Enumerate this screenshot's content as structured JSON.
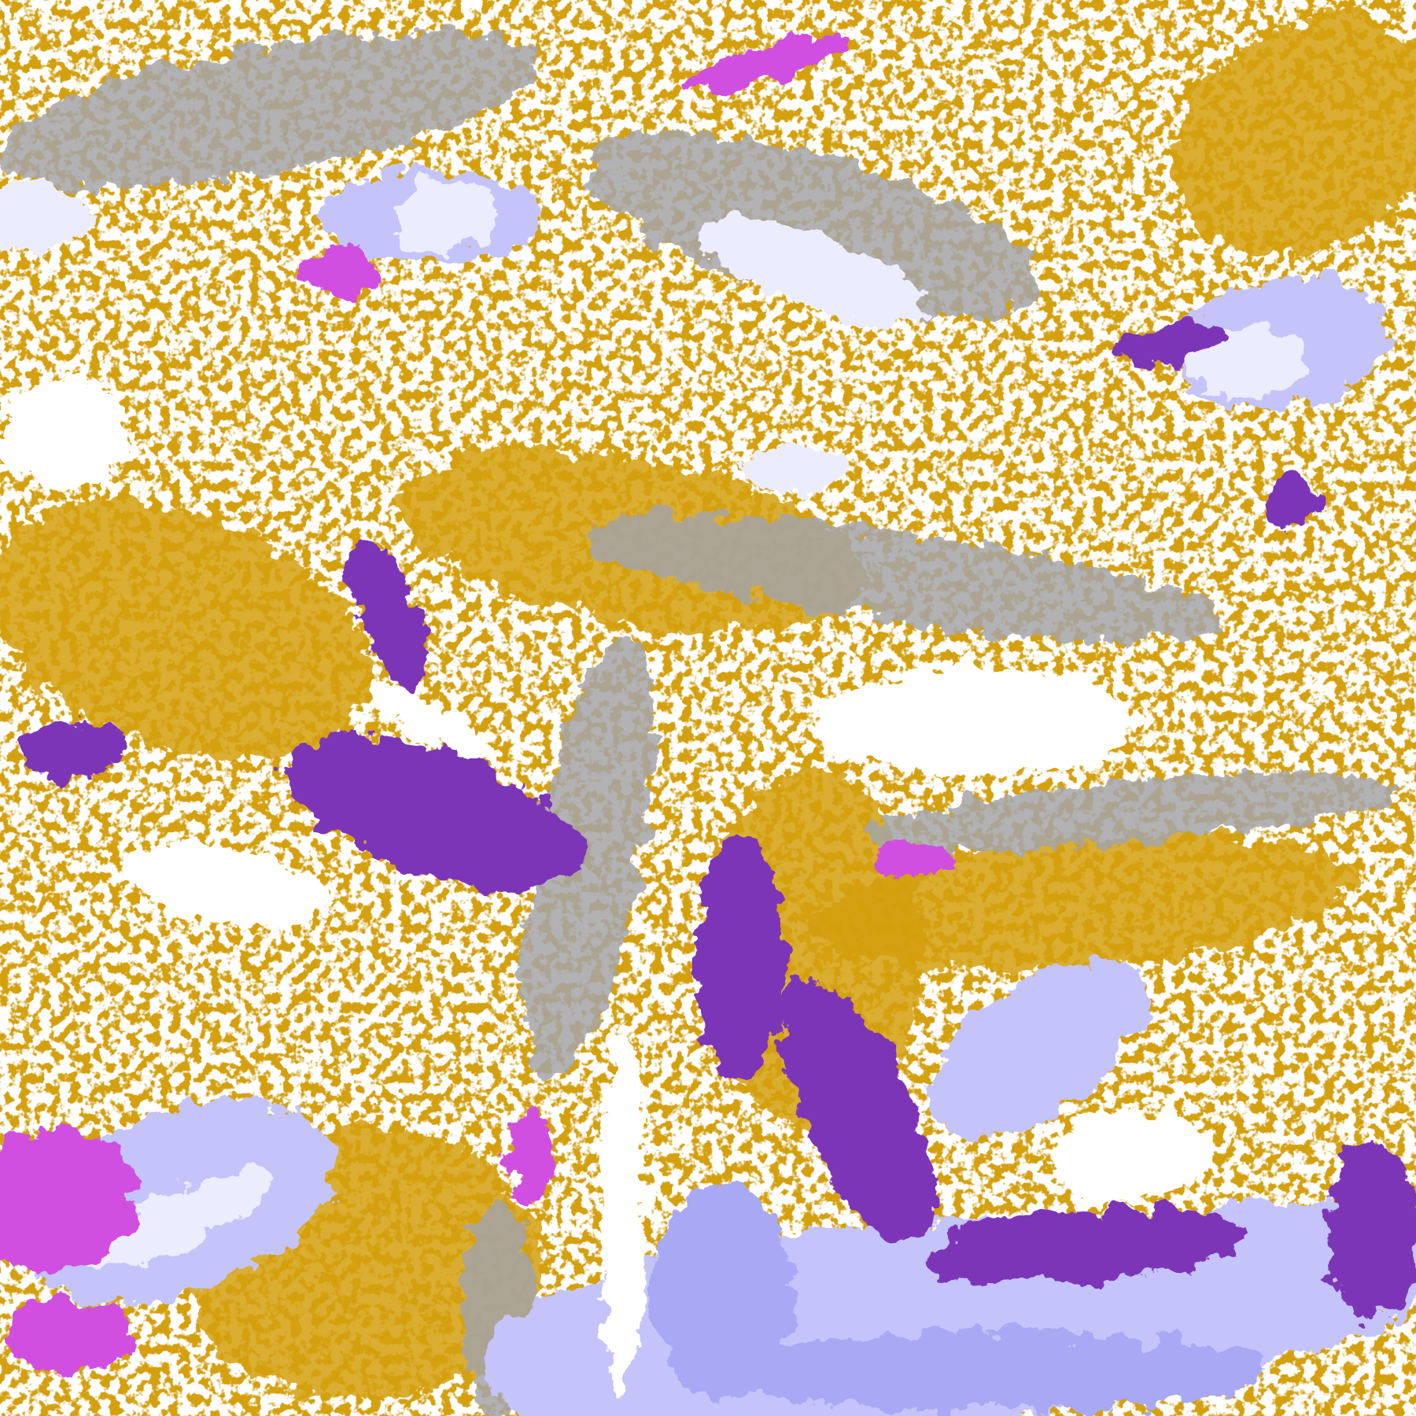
{
  "palette": {
    "clear": "#ffffff",
    "gold": "#d4a010",
    "purple": "#7d35b8",
    "magenta": "#d050e0",
    "gray": "#a4a4a8",
    "lavender": "#c4c4fa",
    "pale": "#ececff",
    "periwinkle": "#a8a8f4"
  }
}
